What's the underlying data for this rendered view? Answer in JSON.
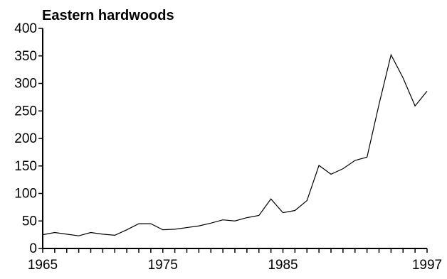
{
  "chart_data": {
    "type": "line",
    "title": "Eastern hardwoods",
    "xlabel": "",
    "ylabel": "",
    "xlim": [
      1965,
      1997
    ],
    "ylim": [
      0,
      400
    ],
    "x_ticks": [
      1965,
      1966,
      1967,
      1968,
      1969,
      1970,
      1971,
      1972,
      1973,
      1974,
      1975,
      1976,
      1977,
      1978,
      1979,
      1980,
      1981,
      1982,
      1983,
      1984,
      1985,
      1986,
      1987,
      1988,
      1989,
      1990,
      1991,
      1992,
      1993,
      1994,
      1995,
      1996,
      1997
    ],
    "x_tick_labels": [
      {
        "value": 1965,
        "label": "1965"
      },
      {
        "value": 1975,
        "label": "1975"
      },
      {
        "value": 1985,
        "label": "1985"
      },
      {
        "value": 1997,
        "label": "1997"
      }
    ],
    "y_ticks": [
      0,
      50,
      100,
      150,
      200,
      250,
      300,
      350,
      400
    ],
    "y_tick_labels": [
      "0",
      "50",
      "100",
      "150",
      "200",
      "250",
      "300",
      "350",
      "400"
    ],
    "grid": false,
    "series": [
      {
        "x": [
          1965,
          1966,
          1967,
          1968,
          1969,
          1970,
          1971,
          1972,
          1973,
          1974,
          1975,
          1976,
          1977,
          1978,
          1979,
          1980,
          1981,
          1982,
          1983,
          1984,
          1985,
          1986,
          1987,
          1988,
          1989,
          1990,
          1991,
          1992,
          1993,
          1994,
          1995,
          1996,
          1997
        ],
        "values": [
          25,
          29,
          26,
          23,
          29,
          26,
          24,
          34,
          45,
          45,
          34,
          35,
          38,
          41,
          46,
          52,
          50,
          56,
          60,
          90,
          65,
          69,
          87,
          151,
          135,
          145,
          160,
          166,
          262,
          352,
          310,
          259,
          286
        ]
      }
    ]
  }
}
